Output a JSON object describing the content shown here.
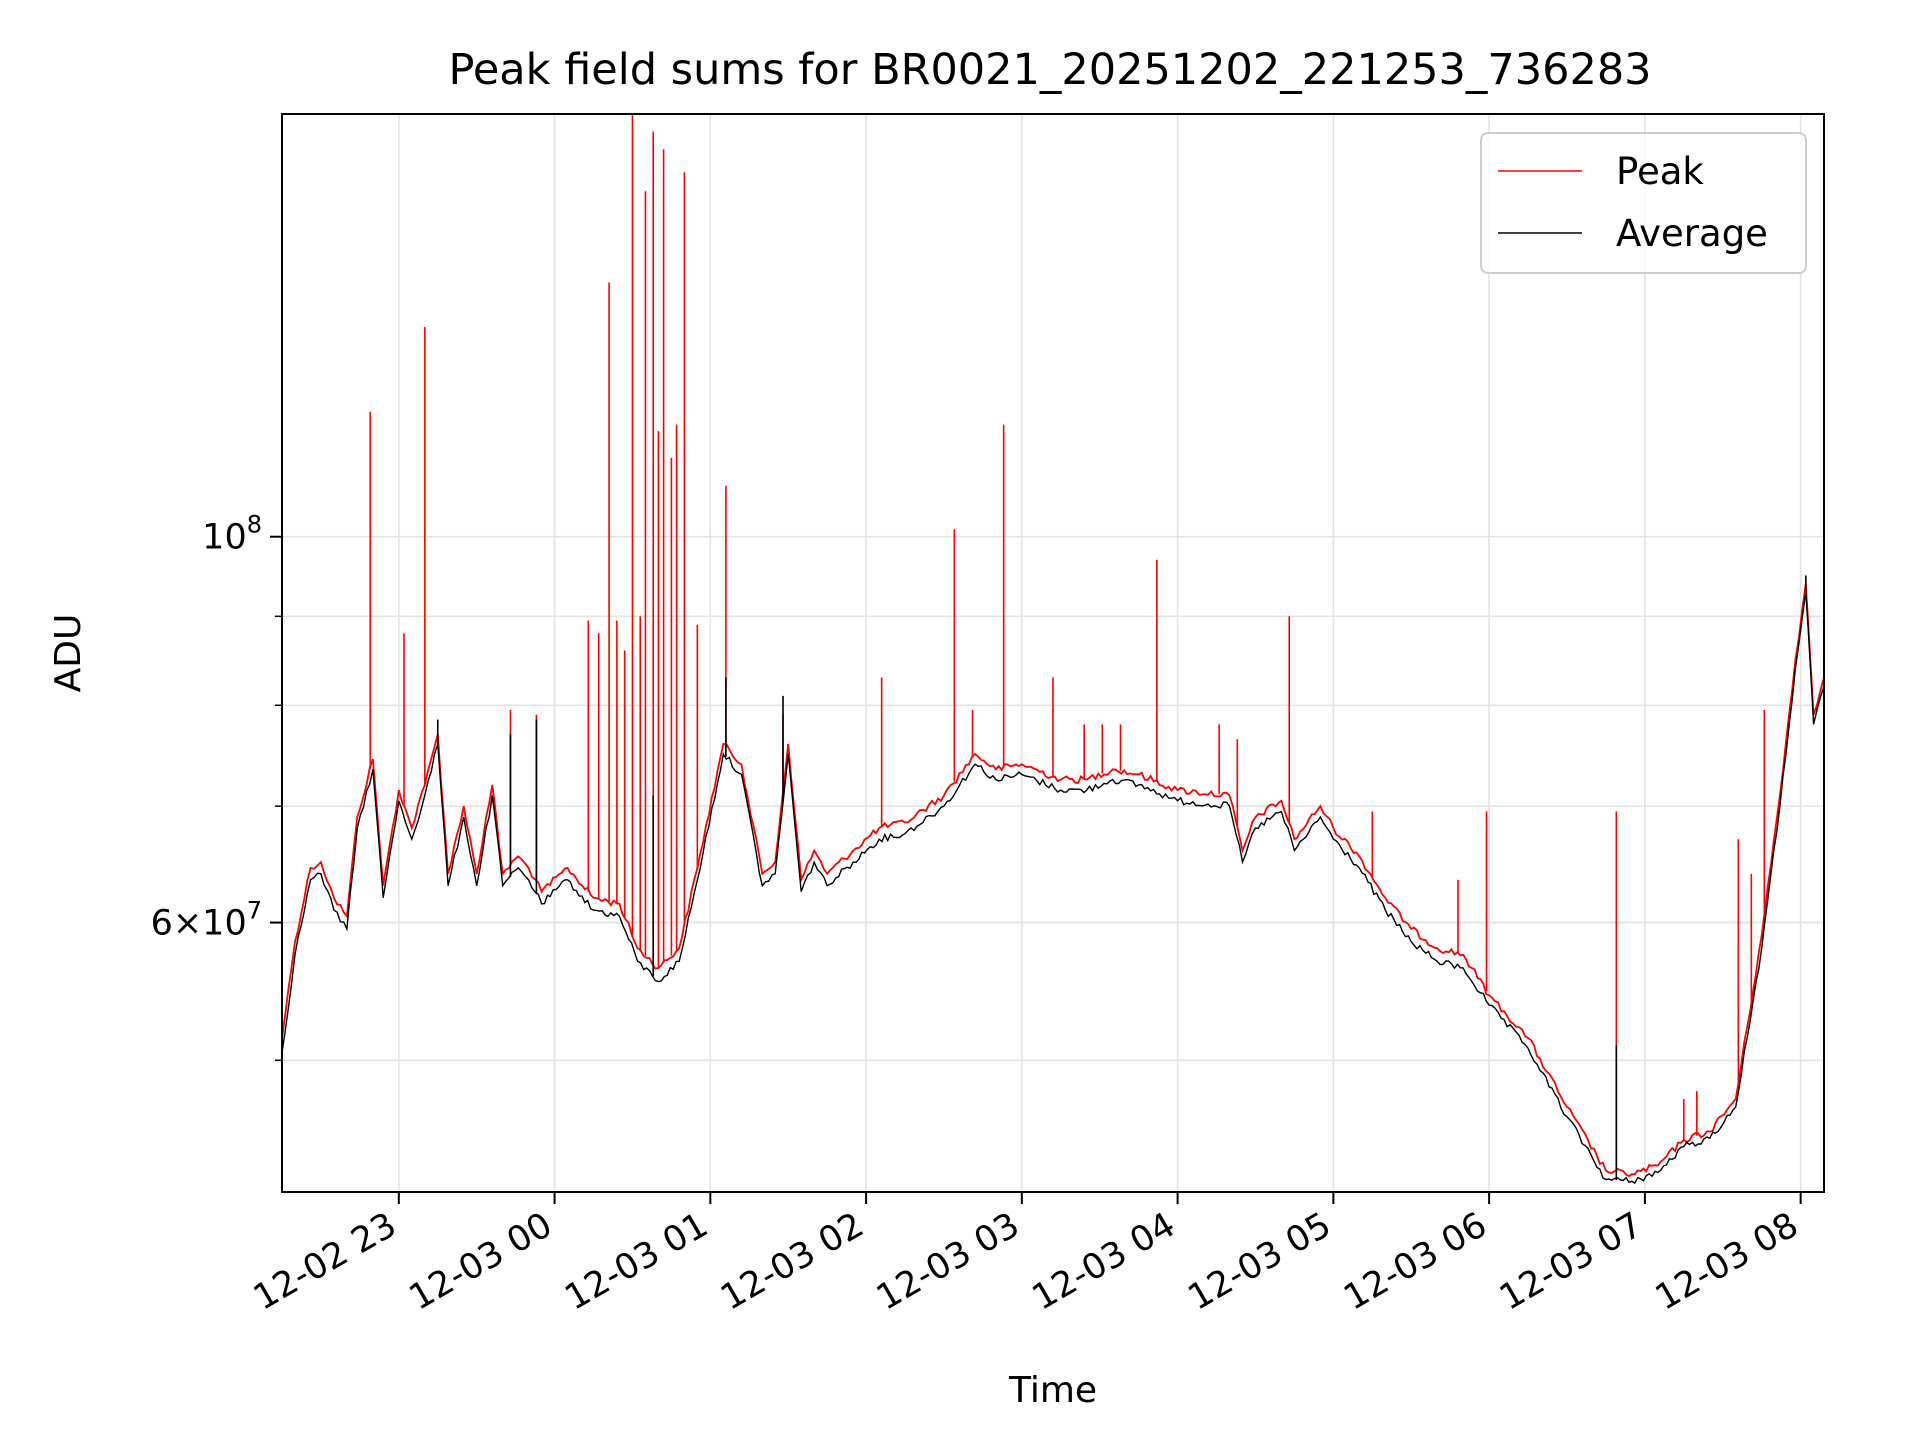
{
  "chart_data": {
    "type": "line",
    "title": "Peak field sums for BR0021_20251202_221253_736283",
    "xlabel": "Time",
    "ylabel": "ADU",
    "y_scale": "log",
    "ylim": [
      42000000,
      175000000
    ],
    "xlim": [
      "2025-12-02 22:15",
      "2025-12-03 08:09"
    ],
    "grid": true,
    "legend_position": "upper-right",
    "x_ticks": [
      {
        "t": "2025-12-02 23:00",
        "label": "12-02 23"
      },
      {
        "t": "2025-12-03 00:00",
        "label": "12-03 00"
      },
      {
        "t": "2025-12-03 01:00",
        "label": "12-03 01"
      },
      {
        "t": "2025-12-03 02:00",
        "label": "12-03 02"
      },
      {
        "t": "2025-12-03 03:00",
        "label": "12-03 03"
      },
      {
        "t": "2025-12-03 04:00",
        "label": "12-03 04"
      },
      {
        "t": "2025-12-03 05:00",
        "label": "12-03 05"
      },
      {
        "t": "2025-12-03 06:00",
        "label": "12-03 06"
      },
      {
        "t": "2025-12-03 07:00",
        "label": "12-03 07"
      },
      {
        "t": "2025-12-03 08:00",
        "label": "12-03 08"
      }
    ],
    "y_major_ticks": [
      {
        "value": 100000000,
        "base": "10",
        "exp": "8",
        "kind": "power"
      },
      {
        "value": 60000000,
        "mant": "6",
        "exp": "7",
        "kind": "sci"
      }
    ],
    "y_minor_ticks": [
      50000000,
      60000000,
      70000000,
      80000000,
      90000000
    ],
    "series": [
      {
        "name": "Peak",
        "color": "#ff0000",
        "baseline": [
          [
            "2025-12-02 22:15",
            51500000
          ],
          [
            "2025-12-02 22:20",
            58500000
          ],
          [
            "2025-12-02 22:26",
            64500000
          ],
          [
            "2025-12-02 22:30",
            65000000
          ],
          [
            "2025-12-02 22:35",
            62000000
          ],
          [
            "2025-12-02 22:40",
            60500000
          ],
          [
            "2025-12-02 22:44",
            69000000
          ],
          [
            "2025-12-02 22:50",
            74500000
          ],
          [
            "2025-12-02 22:54",
            63000000
          ],
          [
            "2025-12-02 23:00",
            71500000
          ],
          [
            "2025-12-02 23:05",
            68000000
          ],
          [
            "2025-12-02 23:10",
            72000000
          ],
          [
            "2025-12-02 23:15",
            77000000
          ],
          [
            "2025-12-02 23:19",
            64000000
          ],
          [
            "2025-12-02 23:25",
            70000000
          ],
          [
            "2025-12-02 23:30",
            64000000
          ],
          [
            "2025-12-02 23:36",
            72000000
          ],
          [
            "2025-12-02 23:40",
            64000000
          ],
          [
            "2025-12-02 23:46",
            65500000
          ],
          [
            "2025-12-02 23:50",
            64500000
          ],
          [
            "2025-12-02 23:55",
            62500000
          ],
          [
            "2025-12-03 00:05",
            64500000
          ],
          [
            "2025-12-03 00:15",
            62000000
          ],
          [
            "2025-12-03 00:25",
            61500000
          ],
          [
            "2025-12-03 00:32",
            58000000
          ],
          [
            "2025-12-03 00:40",
            56500000
          ],
          [
            "2025-12-03 00:48",
            58000000
          ],
          [
            "2025-12-03 00:55",
            64500000
          ],
          [
            "2025-12-03 01:05",
            76000000
          ],
          [
            "2025-12-03 01:12",
            74000000
          ],
          [
            "2025-12-03 01:20",
            64000000
          ],
          [
            "2025-12-03 01:25",
            65000000
          ],
          [
            "2025-12-03 01:30",
            76000000
          ],
          [
            "2025-12-03 01:35",
            63500000
          ],
          [
            "2025-12-03 01:40",
            66000000
          ],
          [
            "2025-12-03 01:45",
            64000000
          ],
          [
            "2025-12-03 01:55",
            66000000
          ],
          [
            "2025-12-03 02:05",
            68000000
          ],
          [
            "2025-12-03 02:15",
            68500000
          ],
          [
            "2025-12-03 02:30",
            71000000
          ],
          [
            "2025-12-03 02:42",
            75000000
          ],
          [
            "2025-12-03 02:50",
            73500000
          ],
          [
            "2025-12-03 03:00",
            74000000
          ],
          [
            "2025-12-03 03:15",
            72500000
          ],
          [
            "2025-12-03 03:25",
            72500000
          ],
          [
            "2025-12-03 03:35",
            73500000
          ],
          [
            "2025-12-03 03:45",
            73000000
          ],
          [
            "2025-12-03 04:00",
            71500000
          ],
          [
            "2025-12-03 04:20",
            71000000
          ],
          [
            "2025-12-03 04:25",
            66000000
          ],
          [
            "2025-12-03 04:30",
            69000000
          ],
          [
            "2025-12-03 04:40",
            70500000
          ],
          [
            "2025-12-03 04:45",
            67000000
          ],
          [
            "2025-12-03 04:55",
            70000000
          ],
          [
            "2025-12-03 05:00",
            68000000
          ],
          [
            "2025-12-03 05:10",
            65500000
          ],
          [
            "2025-12-03 05:20",
            62000000
          ],
          [
            "2025-12-03 05:30",
            59500000
          ],
          [
            "2025-12-03 05:40",
            58000000
          ],
          [
            "2025-12-03 05:50",
            57500000
          ],
          [
            "2025-12-03 06:00",
            54500000
          ],
          [
            "2025-12-03 06:15",
            51500000
          ],
          [
            "2025-12-03 06:30",
            47000000
          ],
          [
            "2025-12-03 06:45",
            43200000
          ],
          [
            "2025-12-03 06:55",
            43000000
          ],
          [
            "2025-12-03 07:05",
            43500000
          ],
          [
            "2025-12-03 07:15",
            45000000
          ],
          [
            "2025-12-03 07:25",
            45500000
          ],
          [
            "2025-12-03 07:35",
            47500000
          ],
          [
            "2025-12-03 07:45",
            59000000
          ],
          [
            "2025-12-03 07:52",
            71000000
          ],
          [
            "2025-12-03 07:58",
            85000000
          ],
          [
            "2025-12-03 08:02",
            94000000
          ],
          [
            "2025-12-03 08:05",
            79000000
          ],
          [
            "2025-12-03 08:09",
            83000000
          ]
        ],
        "spikes": [
          [
            "2025-12-02 22:49",
            118000000
          ],
          [
            "2025-12-02 23:02",
            88000000
          ],
          [
            "2025-12-02 23:10",
            132000000
          ],
          [
            "2025-12-02 23:43",
            79500000
          ],
          [
            "2025-12-02 23:53",
            79000000
          ],
          [
            "2025-12-03 00:13",
            89500000
          ],
          [
            "2025-12-03 00:17",
            88000000
          ],
          [
            "2025-12-03 00:21",
            140000000
          ],
          [
            "2025-12-03 00:24",
            89500000
          ],
          [
            "2025-12-03 00:27",
            86000000
          ],
          [
            "2025-12-03 00:30",
            175000000
          ],
          [
            "2025-12-03 00:33",
            90000000
          ],
          [
            "2025-12-03 00:35",
            158000000
          ],
          [
            "2025-12-03 00:38",
            171000000
          ],
          [
            "2025-12-03 00:40",
            115000000
          ],
          [
            "2025-12-03 00:42",
            167000000
          ],
          [
            "2025-12-03 00:45",
            111000000
          ],
          [
            "2025-12-03 00:47",
            116000000
          ],
          [
            "2025-12-03 00:50",
            162000000
          ],
          [
            "2025-12-03 00:55",
            89000000
          ],
          [
            "2025-12-03 01:06",
            107000000
          ],
          [
            "2025-12-03 01:28",
            79000000
          ],
          [
            "2025-12-03 02:06",
            83000000
          ],
          [
            "2025-12-03 02:34",
            101000000
          ],
          [
            "2025-12-03 02:41",
            79500000
          ],
          [
            "2025-12-03 02:53",
            116000000
          ],
          [
            "2025-12-03 03:12",
            83000000
          ],
          [
            "2025-12-03 03:24",
            78000000
          ],
          [
            "2025-12-03 03:31",
            78000000
          ],
          [
            "2025-12-03 03:38",
            78000000
          ],
          [
            "2025-12-03 03:52",
            97000000
          ],
          [
            "2025-12-03 04:16",
            78000000
          ],
          [
            "2025-12-03 04:23",
            76500000
          ],
          [
            "2025-12-03 04:43",
            90000000
          ],
          [
            "2025-12-03 05:15",
            69500000
          ],
          [
            "2025-12-03 05:48",
            63500000
          ],
          [
            "2025-12-03 05:59",
            69500000
          ],
          [
            "2025-12-03 06:49",
            69500000
          ],
          [
            "2025-12-03 07:15",
            47500000
          ],
          [
            "2025-12-03 07:20",
            48000000
          ],
          [
            "2025-12-03 07:36",
            67000000
          ],
          [
            "2025-12-03 07:41",
            64000000
          ],
          [
            "2025-12-03 07:46",
            79500000
          ]
        ]
      },
      {
        "name": "Average",
        "color": "#000000",
        "baseline": [
          [
            "2025-12-02 22:15",
            50500000
          ],
          [
            "2025-12-02 22:20",
            57500000
          ],
          [
            "2025-12-02 22:26",
            63500000
          ],
          [
            "2025-12-02 22:30",
            64000000
          ],
          [
            "2025-12-02 22:35",
            61000000
          ],
          [
            "2025-12-02 22:40",
            59500000
          ],
          [
            "2025-12-02 22:44",
            68000000
          ],
          [
            "2025-12-02 22:50",
            73500000
          ],
          [
            "2025-12-02 22:54",
            62000000
          ],
          [
            "2025-12-02 23:00",
            70500000
          ],
          [
            "2025-12-02 23:05",
            67000000
          ],
          [
            "2025-12-02 23:10",
            71000000
          ],
          [
            "2025-12-02 23:15",
            76000000
          ],
          [
            "2025-12-02 23:19",
            63000000
          ],
          [
            "2025-12-02 23:25",
            69000000
          ],
          [
            "2025-12-02 23:30",
            63000000
          ],
          [
            "2025-12-02 23:36",
            71000000
          ],
          [
            "2025-12-02 23:40",
            63000000
          ],
          [
            "2025-12-02 23:46",
            64500000
          ],
          [
            "2025-12-02 23:50",
            63500000
          ],
          [
            "2025-12-02 23:55",
            61500000
          ],
          [
            "2025-12-03 00:05",
            63500000
          ],
          [
            "2025-12-03 00:15",
            61000000
          ],
          [
            "2025-12-03 00:25",
            60500000
          ],
          [
            "2025-12-03 00:32",
            57000000
          ],
          [
            "2025-12-03 00:40",
            55500000
          ],
          [
            "2025-12-03 00:48",
            57000000
          ],
          [
            "2025-12-03 00:55",
            63500000
          ],
          [
            "2025-12-03 01:05",
            75000000
          ],
          [
            "2025-12-03 01:12",
            73000000
          ],
          [
            "2025-12-03 01:20",
            63000000
          ],
          [
            "2025-12-03 01:25",
            64000000
          ],
          [
            "2025-12-03 01:30",
            75000000
          ],
          [
            "2025-12-03 01:35",
            62500000
          ],
          [
            "2025-12-03 01:40",
            65000000
          ],
          [
            "2025-12-03 01:45",
            63000000
          ],
          [
            "2025-12-03 01:55",
            65000000
          ],
          [
            "2025-12-03 02:05",
            67000000
          ],
          [
            "2025-12-03 02:15",
            67500000
          ],
          [
            "2025-12-03 02:30",
            70000000
          ],
          [
            "2025-12-03 02:42",
            74000000
          ],
          [
            "2025-12-03 02:50",
            72500000
          ],
          [
            "2025-12-03 03:00",
            73000000
          ],
          [
            "2025-12-03 03:15",
            71500000
          ],
          [
            "2025-12-03 03:25",
            71500000
          ],
          [
            "2025-12-03 03:35",
            72500000
          ],
          [
            "2025-12-03 03:45",
            72000000
          ],
          [
            "2025-12-03 04:00",
            70500000
          ],
          [
            "2025-12-03 04:20",
            70000000
          ],
          [
            "2025-12-03 04:25",
            65000000
          ],
          [
            "2025-12-03 04:30",
            68000000
          ],
          [
            "2025-12-03 04:40",
            69500000
          ],
          [
            "2025-12-03 04:45",
            66000000
          ],
          [
            "2025-12-03 04:55",
            69000000
          ],
          [
            "2025-12-03 05:00",
            67000000
          ],
          [
            "2025-12-03 05:10",
            64500000
          ],
          [
            "2025-12-03 05:20",
            61000000
          ],
          [
            "2025-12-03 05:30",
            58500000
          ],
          [
            "2025-12-03 05:40",
            57000000
          ],
          [
            "2025-12-03 05:50",
            56500000
          ],
          [
            "2025-12-03 06:00",
            53800000
          ],
          [
            "2025-12-03 06:15",
            50800000
          ],
          [
            "2025-12-03 06:30",
            46400000
          ],
          [
            "2025-12-03 06:45",
            42700000
          ],
          [
            "2025-12-03 06:55",
            42600000
          ],
          [
            "2025-12-03 07:05",
            43100000
          ],
          [
            "2025-12-03 07:15",
            44600000
          ],
          [
            "2025-12-03 07:25",
            45100000
          ],
          [
            "2025-12-03 07:35",
            47000000
          ],
          [
            "2025-12-03 07:45",
            58000000
          ],
          [
            "2025-12-03 07:52",
            70000000
          ],
          [
            "2025-12-03 07:58",
            84000000
          ],
          [
            "2025-12-03 08:02",
            93000000
          ],
          [
            "2025-12-03 08:05",
            78000000
          ],
          [
            "2025-12-03 08:09",
            82000000
          ]
        ],
        "spikes": [
          [
            "2025-12-02 23:15",
            78500000
          ],
          [
            "2025-12-02 23:43",
            77000000
          ],
          [
            "2025-12-02 23:53",
            78500000
          ],
          [
            "2025-12-03 00:38",
            71000000
          ],
          [
            "2025-12-03 01:06",
            83000000
          ],
          [
            "2025-12-03 01:28",
            81000000
          ],
          [
            "2025-12-03 06:49",
            51000000
          ],
          [
            "2025-12-03 08:02",
            95000000
          ]
        ]
      }
    ]
  }
}
